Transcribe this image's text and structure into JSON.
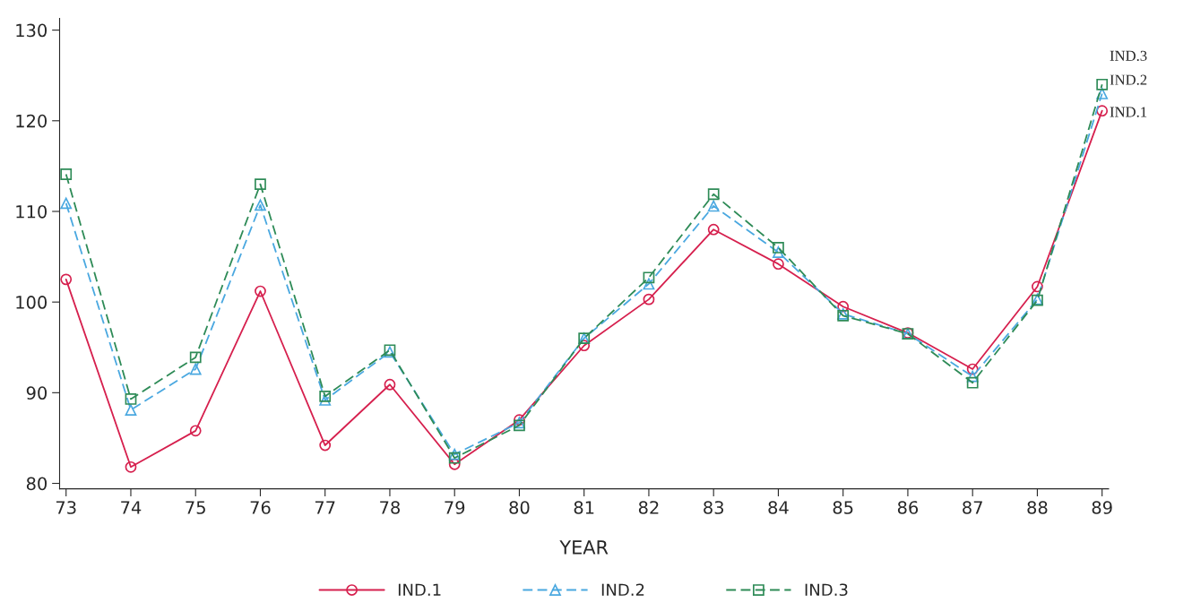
{
  "chart_data": {
    "type": "line",
    "xlabel": "YEAR",
    "x": [
      73,
      74,
      75,
      76,
      77,
      78,
      79,
      80,
      81,
      82,
      83,
      84,
      85,
      86,
      87,
      88,
      89
    ],
    "series": [
      {
        "name": "IND.1",
        "color": "#d6204e",
        "marker": "circle",
        "line_style": "solid",
        "values": [
          102.5,
          81.8,
          85.8,
          101.2,
          84.2,
          90.9,
          82.1,
          87.0,
          95.2,
          100.3,
          108.0,
          104.2,
          99.5,
          96.6,
          92.6,
          101.7,
          121.1
        ]
      },
      {
        "name": "IND.2",
        "color": "#4aa8e0",
        "marker": "triangle",
        "line_style": "dashed",
        "values": [
          110.9,
          88.1,
          92.6,
          110.7,
          89.2,
          94.5,
          83.2,
          86.7,
          96.0,
          102.0,
          110.6,
          105.5,
          98.7,
          96.5,
          91.8,
          100.3,
          123.0
        ]
      },
      {
        "name": "IND.3",
        "color": "#2e8b57",
        "marker": "square",
        "line_style": "dashed",
        "values": [
          114.1,
          89.3,
          93.9,
          113.0,
          89.6,
          94.7,
          82.8,
          86.4,
          96.0,
          102.7,
          111.9,
          106.0,
          98.5,
          96.5,
          91.1,
          100.2,
          124.0
        ]
      }
    ],
    "xlim": [
      72.9,
      89.1
    ],
    "ylim": [
      79.4,
      131.3
    ],
    "xticks": [
      73,
      74,
      75,
      76,
      77,
      78,
      79,
      80,
      81,
      82,
      83,
      84,
      85,
      86,
      87,
      88,
      89
    ],
    "yticks": [
      80,
      90,
      100,
      110,
      120,
      130
    ],
    "grid": false,
    "legend": "bottom"
  }
}
